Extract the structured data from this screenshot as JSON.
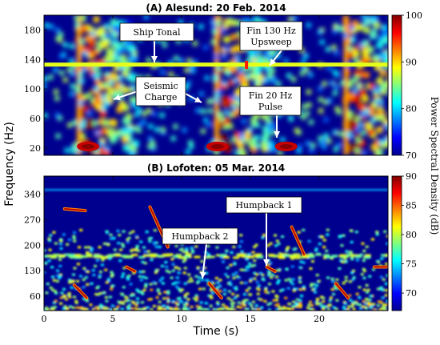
{
  "figure": {
    "xlabel": "Time (s)",
    "ylabel": "Frequency (Hz)",
    "colorbar_label": "Power Spectral Density (dB)",
    "colormap": "jet"
  },
  "chart_data": [
    {
      "type": "heatmap",
      "title": "(A) Alesund: 20 Feb. 2014",
      "xlim": [
        0,
        25
      ],
      "ylim": [
        10,
        200
      ],
      "xticks": [
        "0",
        "5",
        "10",
        "15",
        "20"
      ],
      "yticks": [
        "20",
        "60",
        "100",
        "140",
        "180"
      ],
      "colorbar": {
        "range": [
          70,
          100
        ],
        "ticks": [
          "70",
          "80",
          "90",
          "100"
        ]
      },
      "annotations": [
        {
          "id": "ship-tonal",
          "lines": [
            "Ship Tonal"
          ]
        },
        {
          "id": "seismic-charge",
          "lines": [
            "Seismic",
            "Charge"
          ]
        },
        {
          "id": "fin-130",
          "lines": [
            "Fin 130 Hz",
            "Upsweep"
          ]
        },
        {
          "id": "fin-20",
          "lines": [
            "Fin 20 Hz",
            "Pulse"
          ]
        }
      ]
    },
    {
      "type": "heatmap",
      "title": "(B) Lofoten: 05 Mar. 2014",
      "xlim": [
        0,
        25
      ],
      "ylim": [
        20,
        390
      ],
      "xticks": [
        "0",
        "5",
        "10",
        "15",
        "20"
      ],
      "yticks": [
        "60",
        "130",
        "200",
        "270",
        "340"
      ],
      "colorbar": {
        "range": [
          67,
          90
        ],
        "ticks": [
          "70",
          "75",
          "80",
          "85",
          "90"
        ]
      },
      "annotations": [
        {
          "id": "humpback-1",
          "lines": [
            "Humpback 1"
          ]
        },
        {
          "id": "humpback-2",
          "lines": [
            "Humpback 2"
          ]
        }
      ]
    }
  ]
}
